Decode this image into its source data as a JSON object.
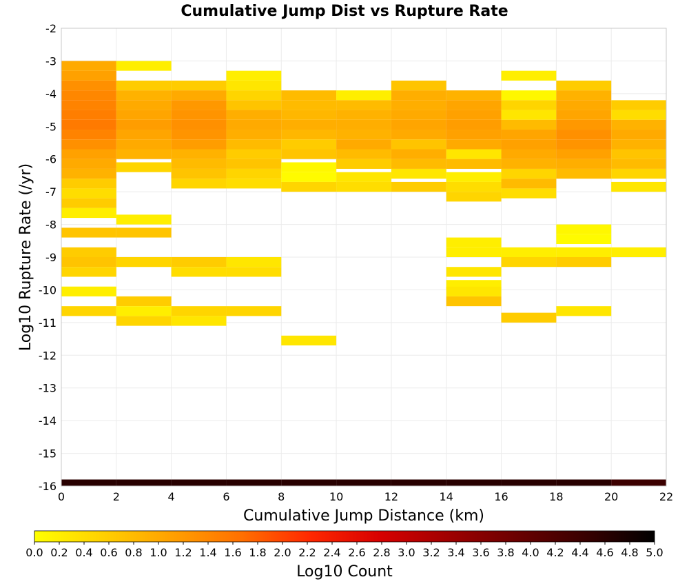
{
  "chart_data": {
    "type": "heatmap",
    "title": "Cumulative Jump Dist vs Rupture Rate",
    "xlabel": "Cumulative Jump Distance (km)",
    "ylabel": "Log10 Rupture Rate (/yr)",
    "xlim": [
      0,
      22
    ],
    "ylim": [
      -16,
      -2
    ],
    "x_ticks": [
      0,
      2,
      4,
      6,
      8,
      10,
      12,
      14,
      16,
      18,
      20,
      22
    ],
    "y_ticks": [
      -2,
      -3,
      -4,
      -5,
      -6,
      -7,
      -8,
      -9,
      -10,
      -11,
      -12,
      -13,
      -14,
      -15,
      -16
    ],
    "grid": true,
    "colorbar": {
      "label": "Log10 Count",
      "range": [
        0.0,
        5.0
      ],
      "ticks": [
        "0.0",
        "0.2",
        "0.4",
        "0.6",
        "0.8",
        "1.0",
        "1.2",
        "1.4",
        "1.6",
        "1.8",
        "2.0",
        "2.2",
        "2.4",
        "2.6",
        "2.8",
        "3.0",
        "3.2",
        "3.4",
        "3.6",
        "3.8",
        "4.0",
        "4.2",
        "4.4",
        "4.6",
        "4.8",
        "5.0"
      ],
      "colormap": [
        "#ffff00",
        "#ffd000",
        "#ffa000",
        "#ff7000",
        "#ff2800",
        "#d80000",
        "#a00000",
        "#6a0000",
        "#380000",
        "#000000"
      ]
    },
    "x_bin_width": 2,
    "y_bin_height": 0.3,
    "columns": [
      {
        "x": 0,
        "cells": [
          [
            -3.15,
            1.0
          ],
          [
            -3.45,
            1.1
          ],
          [
            -3.75,
            1.3
          ],
          [
            -4.05,
            1.4
          ],
          [
            -4.35,
            1.45
          ],
          [
            -4.65,
            1.5
          ],
          [
            -4.95,
            1.55
          ],
          [
            -5.25,
            1.45
          ],
          [
            -5.55,
            1.3
          ],
          [
            -5.85,
            1.1
          ],
          [
            -6.15,
            1.0
          ],
          [
            -6.45,
            0.9
          ],
          [
            -6.75,
            0.6
          ],
          [
            -7.05,
            0.4
          ],
          [
            -7.35,
            0.6
          ],
          [
            -7.65,
            0.2
          ],
          [
            -8.25,
            0.7
          ],
          [
            -8.85,
            0.6
          ],
          [
            -9.15,
            0.7
          ],
          [
            -9.45,
            0.5
          ],
          [
            -10.05,
            0.2
          ],
          [
            -10.65,
            0.5
          ]
        ]
      },
      {
        "x": 2,
        "cells": [
          [
            -3.15,
            0.2
          ],
          [
            -3.75,
            0.6
          ],
          [
            -4.05,
            0.9
          ],
          [
            -4.35,
            1.0
          ],
          [
            -4.65,
            1.05
          ],
          [
            -4.95,
            1.15
          ],
          [
            -5.25,
            1.05
          ],
          [
            -5.55,
            1.0
          ],
          [
            -5.85,
            0.9
          ],
          [
            -6.25,
            0.5
          ],
          [
            -7.85,
            0.2
          ],
          [
            -8.25,
            0.7
          ],
          [
            -9.15,
            0.5
          ],
          [
            -10.35,
            0.6
          ],
          [
            -10.65,
            0.2
          ],
          [
            -10.95,
            0.5
          ]
        ]
      },
      {
        "x": 4,
        "cells": [
          [
            -3.75,
            0.6
          ],
          [
            -4.05,
            1.0
          ],
          [
            -4.35,
            1.2
          ],
          [
            -4.65,
            1.25
          ],
          [
            -4.95,
            1.3
          ],
          [
            -5.25,
            1.25
          ],
          [
            -5.55,
            1.15
          ],
          [
            -5.85,
            0.9
          ],
          [
            -6.15,
            0.8
          ],
          [
            -6.45,
            0.7
          ],
          [
            -6.75,
            0.5
          ],
          [
            -9.15,
            0.6
          ],
          [
            -9.45,
            0.4
          ],
          [
            -10.65,
            0.5
          ],
          [
            -10.95,
            0.3
          ]
        ]
      },
      {
        "x": 6,
        "cells": [
          [
            -3.45,
            0.2
          ],
          [
            -3.75,
            0.3
          ],
          [
            -4.05,
            0.5
          ],
          [
            -4.35,
            0.7
          ],
          [
            -4.65,
            0.95
          ],
          [
            -4.95,
            1.0
          ],
          [
            -5.25,
            0.95
          ],
          [
            -5.55,
            0.8
          ],
          [
            -5.85,
            0.6
          ],
          [
            -6.15,
            0.7
          ],
          [
            -6.45,
            0.5
          ],
          [
            -6.75,
            0.4
          ],
          [
            -9.15,
            0.3
          ],
          [
            -9.45,
            0.4
          ],
          [
            -10.65,
            0.5
          ]
        ]
      },
      {
        "x": 8,
        "cells": [
          [
            -4.05,
            0.8
          ],
          [
            -4.35,
            0.8
          ],
          [
            -4.65,
            0.85
          ],
          [
            -4.95,
            0.95
          ],
          [
            -5.25,
            0.85
          ],
          [
            -5.55,
            0.6
          ],
          [
            -5.85,
            0.7
          ],
          [
            -6.25,
            0.1
          ],
          [
            -6.55,
            0.05
          ],
          [
            -6.85,
            0.5
          ],
          [
            -11.55,
            0.3
          ]
        ]
      },
      {
        "x": 10,
        "cells": [
          [
            -4.05,
            0.2
          ],
          [
            -4.35,
            0.8
          ],
          [
            -4.65,
            0.9
          ],
          [
            -4.95,
            0.95
          ],
          [
            -5.25,
            0.9
          ],
          [
            -5.55,
            1.0
          ],
          [
            -5.85,
            0.8
          ],
          [
            -6.15,
            0.6
          ],
          [
            -6.55,
            0.3
          ],
          [
            -6.85,
            0.4
          ]
        ]
      },
      {
        "x": 12,
        "cells": [
          [
            -3.75,
            0.7
          ],
          [
            -4.05,
            0.95
          ],
          [
            -4.35,
            0.95
          ],
          [
            -4.65,
            1.0
          ],
          [
            -4.95,
            1.05
          ],
          [
            -5.25,
            1.0
          ],
          [
            -5.55,
            0.7
          ],
          [
            -5.85,
            0.95
          ],
          [
            -6.15,
            0.8
          ],
          [
            -6.45,
            0.3
          ],
          [
            -6.85,
            0.6
          ]
        ]
      },
      {
        "x": 14,
        "cells": [
          [
            -4.05,
            0.9
          ],
          [
            -4.35,
            1.05
          ],
          [
            -4.65,
            1.1
          ],
          [
            -4.95,
            1.15
          ],
          [
            -5.25,
            1.1
          ],
          [
            -5.55,
            1.0
          ],
          [
            -5.85,
            0.3
          ],
          [
            -6.15,
            0.8
          ],
          [
            -6.55,
            0.2
          ],
          [
            -6.85,
            0.4
          ],
          [
            -7.15,
            0.5
          ],
          [
            -8.55,
            0.2
          ],
          [
            -8.85,
            0.2
          ],
          [
            -9.45,
            0.3
          ],
          [
            -9.85,
            0.2
          ],
          [
            -10.05,
            0.3
          ],
          [
            -10.35,
            0.7
          ]
        ]
      },
      {
        "x": 16,
        "cells": [
          [
            -3.45,
            0.2
          ],
          [
            -4.05,
            0.1
          ],
          [
            -4.35,
            0.5
          ],
          [
            -4.65,
            0.3
          ],
          [
            -4.95,
            0.8
          ],
          [
            -5.25,
            1.05
          ],
          [
            -5.55,
            1.1
          ],
          [
            -5.85,
            1.0
          ],
          [
            -6.15,
            0.9
          ],
          [
            -6.45,
            0.5
          ],
          [
            -6.75,
            0.8
          ],
          [
            -7.05,
            0.4
          ],
          [
            -8.85,
            0.2
          ],
          [
            -9.15,
            0.5
          ],
          [
            -10.85,
            0.6
          ]
        ]
      },
      {
        "x": 18,
        "cells": [
          [
            -3.75,
            0.6
          ],
          [
            -4.05,
            0.9
          ],
          [
            -4.35,
            1.0
          ],
          [
            -4.65,
            1.05
          ],
          [
            -4.95,
            1.2
          ],
          [
            -5.25,
            1.3
          ],
          [
            -5.55,
            1.25
          ],
          [
            -5.85,
            1.1
          ],
          [
            -6.15,
            0.95
          ],
          [
            -6.45,
            0.8
          ],
          [
            -8.15,
            0.1
          ],
          [
            -8.45,
            0.05
          ],
          [
            -8.85,
            0.2
          ],
          [
            -9.15,
            0.6
          ],
          [
            -10.65,
            0.3
          ]
        ]
      },
      {
        "x": 20,
        "cells": [
          [
            -4.35,
            0.6
          ],
          [
            -4.65,
            0.4
          ],
          [
            -4.95,
            0.9
          ],
          [
            -5.25,
            1.0
          ],
          [
            -5.55,
            0.9
          ],
          [
            -5.85,
            0.7
          ],
          [
            -6.15,
            0.8
          ],
          [
            -6.45,
            0.5
          ],
          [
            -6.85,
            0.3
          ],
          [
            -8.85,
            0.2
          ]
        ]
      }
    ],
    "bottom_row": {
      "y": -16,
      "height": 0.2,
      "value": 4.6,
      "last_value": 4.4
    }
  }
}
